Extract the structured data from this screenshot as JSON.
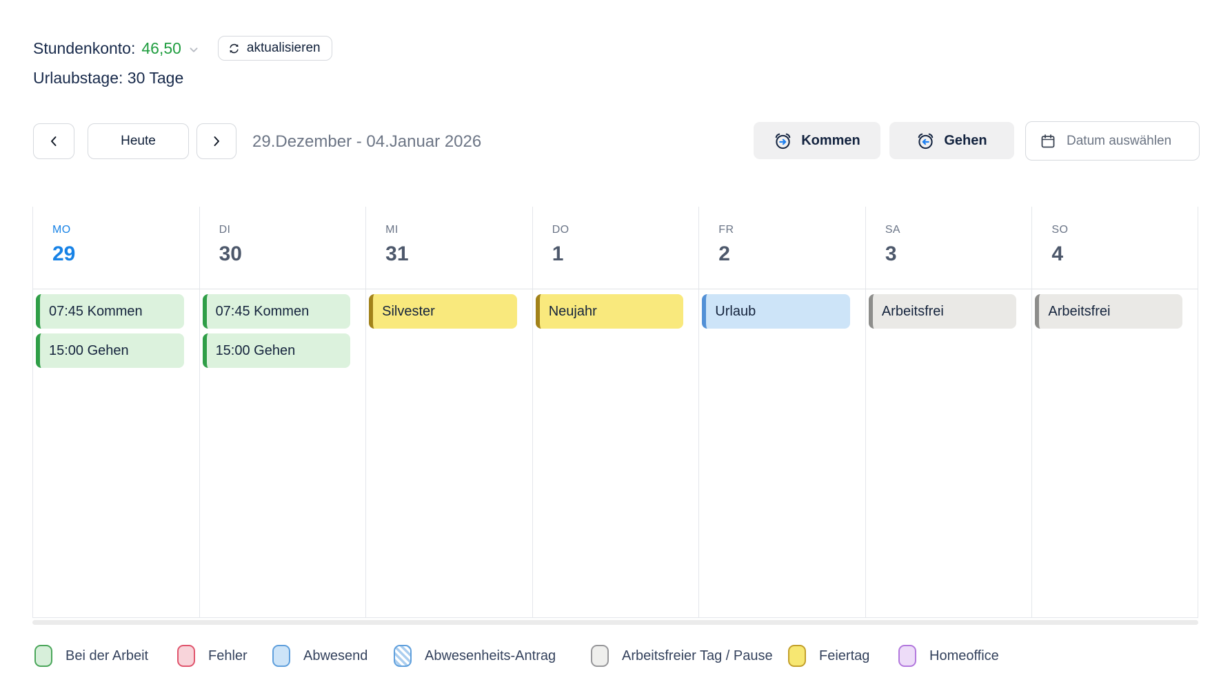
{
  "account": {
    "hours_label": "Stundenkonto:",
    "hours_value": "46,50",
    "refresh_label": "aktualisieren",
    "vacation_label": "Urlaubstage: 30 Tage"
  },
  "toolbar": {
    "today_label": "Heute",
    "date_range": "29.Dezember - 04.Januar 2026",
    "kommen_label": "Kommen",
    "gehen_label": "Gehen",
    "date_picker_label": "Datum auswählen"
  },
  "calendar": {
    "days": [
      {
        "name": "MO",
        "number": "29",
        "today": true,
        "events": [
          {
            "label": "07:45 Kommen",
            "type": "work"
          },
          {
            "label": "15:00 Gehen",
            "type": "work"
          }
        ]
      },
      {
        "name": "DI",
        "number": "30",
        "today": false,
        "events": [
          {
            "label": "07:45 Kommen",
            "type": "work"
          },
          {
            "label": "15:00 Gehen",
            "type": "work"
          }
        ]
      },
      {
        "name": "MI",
        "number": "31",
        "today": false,
        "events": [
          {
            "label": "Silvester",
            "type": "holiday"
          }
        ]
      },
      {
        "name": "DO",
        "number": "1",
        "today": false,
        "events": [
          {
            "label": "Neujahr",
            "type": "holiday"
          }
        ]
      },
      {
        "name": "FR",
        "number": "2",
        "today": false,
        "events": [
          {
            "label": "Urlaub",
            "type": "absent"
          }
        ]
      },
      {
        "name": "SA",
        "number": "3",
        "today": false,
        "events": [
          {
            "label": "Arbeitsfrei",
            "type": "free"
          }
        ]
      },
      {
        "name": "SO",
        "number": "4",
        "today": false,
        "events": [
          {
            "label": "Arbeitsfrei",
            "type": "free"
          }
        ]
      }
    ]
  },
  "legend": [
    {
      "label": "Bei der Arbeit",
      "type": "work"
    },
    {
      "label": "Fehler",
      "type": "error"
    },
    {
      "label": "Abwesend",
      "type": "absent"
    },
    {
      "label": "Abwesenheits-Antrag",
      "type": "absent-request"
    },
    {
      "label": "Arbeitsfreier Tag / Pause",
      "type": "free"
    },
    {
      "label": "Feiertag",
      "type": "holiday"
    },
    {
      "label": "Homeoffice",
      "type": "homeoffice"
    }
  ],
  "colors": {
    "today_blue": "#1782e6",
    "hours_value_green": "#1f9d3f",
    "events": {
      "work": {
        "bg": "#dcf2dd",
        "border": "#2f9e47"
      },
      "holiday": {
        "bg": "#f9e97d",
        "border": "#a2821a"
      },
      "absent": {
        "bg": "#cde4f8",
        "border": "#5290d6"
      },
      "free": {
        "bg": "#eae9e6",
        "border": "#8d8d8b"
      }
    },
    "legend": {
      "work": {
        "bg": "#d7efda",
        "border": "#4aa65a"
      },
      "error": {
        "bg": "#f8d4da",
        "border": "#e0556d"
      },
      "absent": {
        "bg": "#cde4f8",
        "border": "#5f9fdc"
      },
      "absent-request": {
        "bg": "striped",
        "border": "#5f9fdc"
      },
      "free": {
        "bg": "#efefed",
        "border": "#97979a"
      },
      "holiday": {
        "bg": "#f7e772",
        "border": "#c3a02b"
      },
      "homeoffice": {
        "bg": "#eddcf8",
        "border": "#b278dd"
      }
    }
  }
}
